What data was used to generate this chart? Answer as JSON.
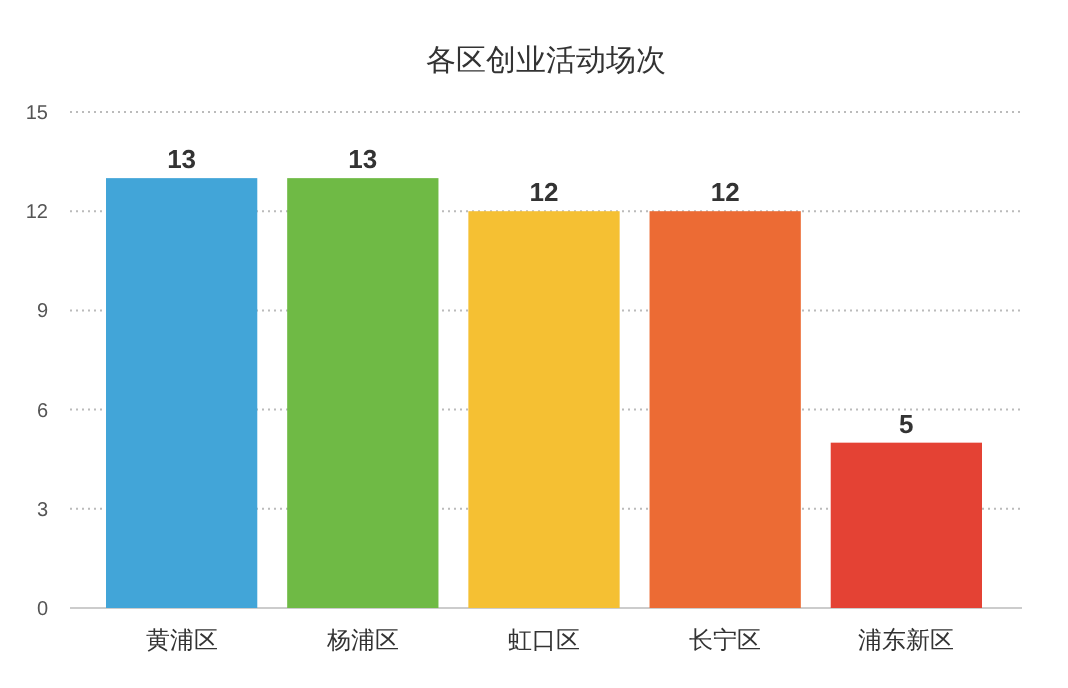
{
  "chart_data": {
    "type": "bar",
    "title": "各区创业活动场次",
    "categories": [
      "黄浦区",
      "杨浦区",
      "虹口区",
      "长宁区",
      "浦东新区"
    ],
    "values": [
      13,
      13,
      12,
      12,
      5
    ],
    "colors": [
      "#42a5d8",
      "#6fba45",
      "#f5c033",
      "#ec6b34",
      "#e44234"
    ],
    "ylim": [
      0,
      15
    ],
    "yticks": [
      0,
      3,
      6,
      9,
      12,
      15
    ],
    "grid": "y",
    "data_labels": true
  }
}
